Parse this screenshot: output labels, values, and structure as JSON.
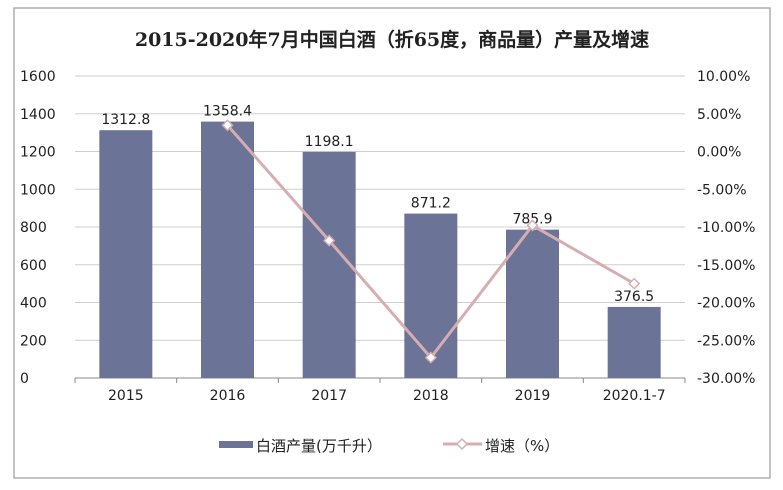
{
  "chart_data": {
    "type": "bar+line",
    "title": "2015-2020年7月中国白酒（折65度，商品量）产量及增速",
    "categories": [
      "2015",
      "2016",
      "2017",
      "2018",
      "2019",
      "2020.1-7"
    ],
    "series": [
      {
        "name": "白酒产量(万千升）",
        "type": "bar",
        "axis": "left",
        "color": "#6b7397",
        "values": [
          1312.8,
          1358.4,
          1198.1,
          871.2,
          785.9,
          376.5
        ],
        "labels": [
          "1312.8",
          "1358.4",
          "1198.1",
          "871.2",
          "785.9",
          "376.5"
        ]
      },
      {
        "name": "增速（%）",
        "type": "line",
        "axis": "right",
        "color": "#d6aeb2",
        "values": [
          null,
          3.47,
          -11.8,
          -27.3,
          -9.79,
          -17.5
        ]
      }
    ],
    "y_left": {
      "range": [
        0,
        1600
      ],
      "ticks": [
        "0",
        "200",
        "400",
        "600",
        "800",
        "1000",
        "1200",
        "1400",
        "1600"
      ]
    },
    "y_right": {
      "range": [
        -30,
        10
      ],
      "ticks": [
        "-30.00%",
        "-25.00%",
        "-20.00%",
        "-15.00%",
        "-10.00%",
        "-5.00%",
        "0.00%",
        "5.00%",
        "10.00%"
      ]
    },
    "grid": true,
    "legend": "bottom"
  }
}
